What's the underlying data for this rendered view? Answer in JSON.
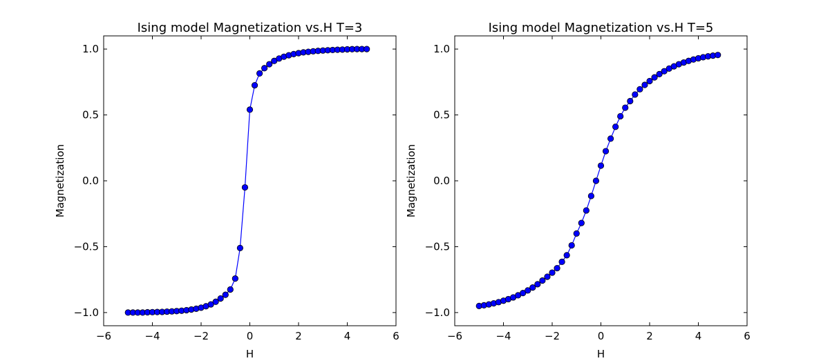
{
  "chart_data": [
    {
      "type": "line",
      "title": "Ising model Magnetization vs.H T=3",
      "xlabel": "H",
      "ylabel": "Magnetization",
      "xlim": [
        -6,
        6
      ],
      "ylim": [
        -1.1,
        1.1
      ],
      "xticks": [
        -6,
        -4,
        -2,
        0,
        2,
        4,
        6
      ],
      "xtick_labels": [
        "−6",
        "−4",
        "−2",
        "0",
        "2",
        "4",
        "6"
      ],
      "yticks": [
        -1.0,
        -0.5,
        0.0,
        0.5,
        1.0
      ],
      "ytick_labels": [
        "−1.0",
        "−0.5",
        "0.0",
        "0.5",
        "1.0"
      ],
      "grid": false,
      "series": [
        {
          "color": "#0000ff",
          "marker": "circle",
          "x": [
            -5.0,
            -4.8,
            -4.6,
            -4.4,
            -4.2,
            -4.0,
            -3.8,
            -3.6,
            -3.4,
            -3.2,
            -3.0,
            -2.8,
            -2.6,
            -2.4,
            -2.2,
            -2.0,
            -1.8,
            -1.6,
            -1.4,
            -1.2,
            -1.0,
            -0.8,
            -0.6,
            -0.4,
            -0.2,
            0.0,
            0.2,
            0.4,
            0.6,
            0.8,
            1.0,
            1.2,
            1.4,
            1.6,
            1.8,
            2.0,
            2.2,
            2.4,
            2.6,
            2.8,
            3.0,
            3.2,
            3.4,
            3.6,
            3.8,
            4.0,
            4.2,
            4.4,
            4.6,
            4.8
          ],
          "y": [
            -1.0,
            -1.0,
            -1.0,
            -1.0,
            -0.998,
            -0.997,
            -0.996,
            -0.995,
            -0.993,
            -0.991,
            -0.989,
            -0.986,
            -0.982,
            -0.977,
            -0.971,
            -0.963,
            -0.952,
            -0.938,
            -0.918,
            -0.893,
            -0.865,
            -0.825,
            -0.742,
            -0.51,
            -0.05,
            0.54,
            0.725,
            0.815,
            0.855,
            0.885,
            0.91,
            0.928,
            0.942,
            0.953,
            0.962,
            0.969,
            0.975,
            0.979,
            0.983,
            0.986,
            0.989,
            0.991,
            0.993,
            0.995,
            0.996,
            0.998,
            0.999,
            1.0,
            1.0,
            1.0
          ]
        }
      ]
    },
    {
      "type": "line",
      "title": "Ising model Magnetization vs.H T=5",
      "xlabel": "H",
      "ylabel": "Magnetization",
      "xlim": [
        -6,
        6
      ],
      "ylim": [
        -1.1,
        1.1
      ],
      "xticks": [
        -6,
        -4,
        -2,
        0,
        2,
        4,
        6
      ],
      "xtick_labels": [
        "−6",
        "−4",
        "−2",
        "0",
        "2",
        "4",
        "6"
      ],
      "yticks": [
        -1.0,
        -0.5,
        0.0,
        0.5,
        1.0
      ],
      "ytick_labels": [
        "−1.0",
        "−0.5",
        "0.0",
        "0.5",
        "1.0"
      ],
      "grid": false,
      "series": [
        {
          "color": "#0000ff",
          "marker": "circle",
          "x": [
            -5.0,
            -4.8,
            -4.6,
            -4.4,
            -4.2,
            -4.0,
            -3.8,
            -3.6,
            -3.4,
            -3.2,
            -3.0,
            -2.8,
            -2.6,
            -2.4,
            -2.2,
            -2.0,
            -1.8,
            -1.6,
            -1.4,
            -1.2,
            -1.0,
            -0.8,
            -0.6,
            -0.4,
            -0.2,
            0.0,
            0.2,
            0.4,
            0.6,
            0.8,
            1.0,
            1.2,
            1.4,
            1.6,
            1.8,
            2.0,
            2.2,
            2.4,
            2.6,
            2.8,
            3.0,
            3.2,
            3.4,
            3.6,
            3.8,
            4.0,
            4.2,
            4.4,
            4.6,
            4.8
          ],
          "y": [
            -0.95,
            -0.945,
            -0.938,
            -0.93,
            -0.921,
            -0.91,
            -0.898,
            -0.885,
            -0.869,
            -0.852,
            -0.832,
            -0.81,
            -0.785,
            -0.757,
            -0.728,
            -0.697,
            -0.663,
            -0.615,
            -0.565,
            -0.49,
            -0.4,
            -0.32,
            -0.225,
            -0.115,
            0.0,
            0.115,
            0.225,
            0.32,
            0.41,
            0.49,
            0.555,
            0.605,
            0.655,
            0.695,
            0.728,
            0.757,
            0.785,
            0.81,
            0.832,
            0.852,
            0.869,
            0.885,
            0.898,
            0.91,
            0.921,
            0.93,
            0.938,
            0.945,
            0.95,
            0.955
          ]
        }
      ]
    }
  ]
}
